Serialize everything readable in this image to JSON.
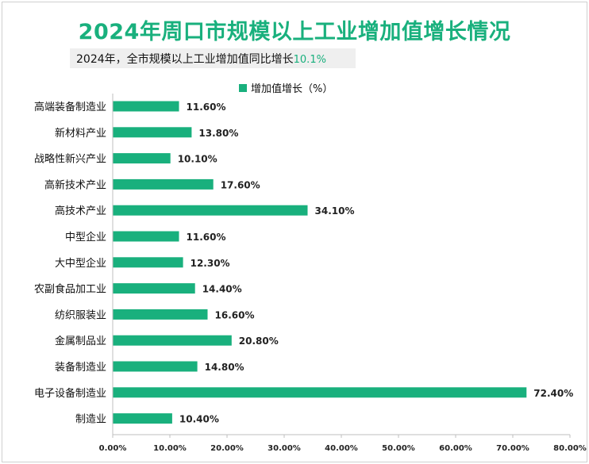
{
  "title": "2024年周口市规模以上工业增加值增长情况",
  "subtitle": {
    "text": "2024年，全市规模以上工业增加值同比增长",
    "highlight": "10.1%"
  },
  "colors": {
    "bar": "#19b07d",
    "title": "#19b07d",
    "axis": "#bfbfbf"
  },
  "chart_data": {
    "type": "bar",
    "orientation": "horizontal",
    "categories": [
      "高端装备制造业",
      "新材料产业",
      "战略性新兴产业",
      "高新技术产业",
      "高技术产业",
      "中型企业",
      "大中型企业",
      "农副食品加工业",
      "纺织服装业",
      "金属制品业",
      "装备制造业",
      "电子设备制造业",
      "制造业"
    ],
    "series": [
      {
        "name": "增加值增长（%）",
        "values": [
          11.6,
          13.8,
          10.1,
          17.6,
          34.1,
          11.6,
          12.3,
          14.4,
          16.6,
          20.8,
          14.8,
          72.4,
          10.4
        ]
      }
    ],
    "data_labels": [
      "11.60%",
      "13.80%",
      "10.10%",
      "17.60%",
      "34.10%",
      "11.60%",
      "12.30%",
      "14.40%",
      "16.60%",
      "20.80%",
      "14.80%",
      "72.40%",
      "10.40%"
    ],
    "x_ticks": [
      "0.00%",
      "10.00%",
      "20.00%",
      "30.00%",
      "40.00%",
      "50.00%",
      "60.00%",
      "70.00%",
      "80.00%"
    ],
    "xlim": [
      0,
      80
    ],
    "legend": "top",
    "grid": false
  }
}
